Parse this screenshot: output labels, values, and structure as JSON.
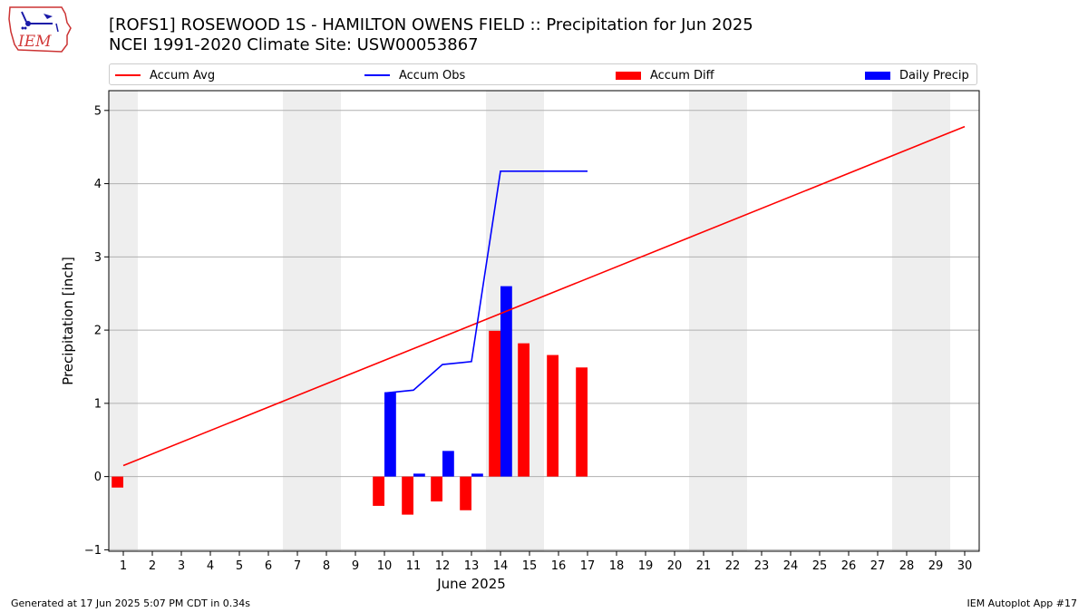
{
  "logo": {
    "name": "iem-logo",
    "text": "IEM"
  },
  "title_line1": "[ROFS1] ROSEWOOD 1S - HAMILTON OWENS FIELD :: Precipitation for Jun 2025",
  "title_line2": "NCEI 1991-2020 Climate Site: USW00053867",
  "footer_left": "Generated at 17 Jun 2025 5:07 PM CDT in 0.34s",
  "footer_right": "IEM Autoplot App #17",
  "colors": {
    "accum_avg": "#ff0000",
    "accum_obs": "#0000ff",
    "accum_diff": "#ff0000",
    "daily_precip": "#0000ff",
    "weekend_band": "#eeeeee",
    "grid": "#b0b0b0"
  },
  "chart_data": {
    "type": "bar",
    "xlabel": "June 2025",
    "ylabel": "Precipitation [inch]",
    "xlim": [
      0.5,
      30.5
    ],
    "ylim": [
      -1.02,
      5.27
    ],
    "x_ticks": [
      1,
      2,
      3,
      4,
      5,
      6,
      7,
      8,
      9,
      10,
      11,
      12,
      13,
      14,
      15,
      16,
      17,
      18,
      19,
      20,
      21,
      22,
      23,
      24,
      25,
      26,
      27,
      28,
      29,
      30
    ],
    "y_ticks": [
      -1,
      0,
      1,
      2,
      3,
      4,
      5
    ],
    "grid": "horizontal",
    "legend": {
      "placement": "top",
      "entries": [
        "Accum Avg",
        "Accum Obs",
        "Accum Diff",
        "Daily Precip"
      ]
    },
    "weekend_bands": [
      [
        0.5,
        1.5
      ],
      [
        6.5,
        8.5
      ],
      [
        13.5,
        15.5
      ],
      [
        20.5,
        22.5
      ],
      [
        27.5,
        29.5
      ]
    ],
    "series": [
      {
        "name": "Accum Avg",
        "kind": "line",
        "x": [
          1,
          30
        ],
        "values": [
          0.15,
          4.78
        ]
      },
      {
        "name": "Accum Obs",
        "kind": "line",
        "x": [
          10,
          11,
          12,
          13,
          14,
          15,
          16,
          17
        ],
        "values": [
          1.14,
          1.18,
          1.53,
          1.57,
          4.17,
          4.17,
          4.17,
          4.17
        ]
      },
      {
        "name": "Accum Diff",
        "kind": "bar",
        "x": [
          1,
          10,
          11,
          12,
          13,
          14,
          15,
          16,
          17
        ],
        "values": [
          -0.15,
          -0.4,
          -0.52,
          -0.34,
          -0.46,
          1.99,
          1.82,
          1.66,
          1.49
        ]
      },
      {
        "name": "Daily Precip",
        "kind": "bar",
        "x": [
          10,
          11,
          12,
          13,
          14
        ],
        "values": [
          1.15,
          0.04,
          0.35,
          0.04,
          2.6
        ]
      }
    ]
  }
}
